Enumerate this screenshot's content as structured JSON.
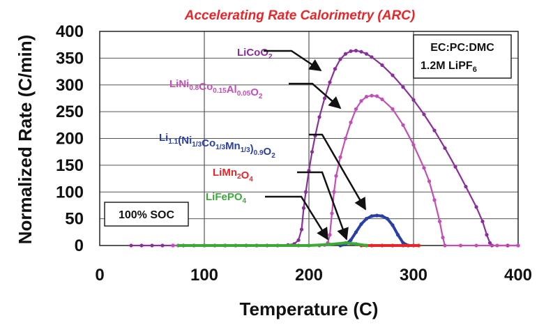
{
  "chart_data": {
    "type": "line",
    "title": "Accelerating Rate Calorimetry (ARC)",
    "xlabel": "Temperature (C)",
    "ylabel": "Normalized Rate (C/min)",
    "xlim": [
      0,
      400
    ],
    "ylim": [
      0,
      400
    ],
    "x_ticks": [
      "0",
      "100",
      "200",
      "300",
      "400"
    ],
    "y_ticks": [
      "0",
      "50",
      "100",
      "150",
      "200",
      "250",
      "300",
      "350",
      "400"
    ],
    "grid": "vertical and horizontal",
    "legend_placement": "top-right",
    "annotation_box": {
      "line1": "EC:PC:DMC",
      "line2_main": "1.2M LiPF",
      "line2_sub": "6"
    },
    "soc_box": "100% SOC",
    "colors": {
      "title": "#e8262a",
      "purple": "#8a2e9b",
      "magenta": "#c44db8",
      "blue": "#2a3ea8",
      "red": "#e8262a",
      "green": "#3aaa35",
      "grid": "#555555"
    },
    "series": [
      {
        "name": "LiCoO2",
        "label_parts": [
          {
            "t": "LiCoO"
          },
          {
            "t": "2",
            "sub": true
          }
        ],
        "color": "#8a2e9b",
        "points": [
          [
            30,
            0
          ],
          [
            40,
            0
          ],
          [
            50,
            0
          ],
          [
            60,
            0
          ],
          [
            70,
            0
          ],
          [
            80,
            0
          ],
          [
            90,
            0
          ],
          [
            100,
            0
          ],
          [
            110,
            0
          ],
          [
            120,
            0
          ],
          [
            130,
            0
          ],
          [
            140,
            0
          ],
          [
            150,
            0
          ],
          [
            160,
            0
          ],
          [
            170,
            0
          ],
          [
            180,
            1
          ],
          [
            186,
            3
          ],
          [
            190,
            10
          ],
          [
            193,
            30
          ],
          [
            195,
            70
          ],
          [
            197,
            100
          ],
          [
            200,
            140
          ],
          [
            203,
            175
          ],
          [
            206,
            205
          ],
          [
            210,
            240
          ],
          [
            215,
            275
          ],
          [
            220,
            305
          ],
          [
            225,
            330
          ],
          [
            230,
            348
          ],
          [
            235,
            358
          ],
          [
            240,
            363
          ],
          [
            245,
            364
          ],
          [
            250,
            362
          ],
          [
            255,
            358
          ],
          [
            260,
            352
          ],
          [
            270,
            337
          ],
          [
            280,
            318
          ],
          [
            290,
            296
          ],
          [
            300,
            272
          ],
          [
            310,
            245
          ],
          [
            320,
            215
          ],
          [
            330,
            182
          ],
          [
            340,
            147
          ],
          [
            350,
            110
          ],
          [
            360,
            72
          ],
          [
            366,
            45
          ],
          [
            370,
            20
          ],
          [
            373,
            5
          ],
          [
            375,
            0
          ],
          [
            390,
            0
          ],
          [
            400,
            0
          ]
        ]
      },
      {
        "name": "LiNi0.8Co0.15Al0.05O2",
        "label_parts": [
          {
            "t": "LiNi"
          },
          {
            "t": "0.8",
            "sub": true
          },
          {
            "t": "Co"
          },
          {
            "t": "0.15",
            "sub": true
          },
          {
            "t": "Al"
          },
          {
            "t": "0.05",
            "sub": true
          },
          {
            "t": "O"
          },
          {
            "t": "2",
            "sub": true
          }
        ],
        "color": "#c44db8",
        "points": [
          [
            70,
            0
          ],
          [
            90,
            0
          ],
          [
            110,
            0
          ],
          [
            130,
            0
          ],
          [
            150,
            0
          ],
          [
            170,
            0
          ],
          [
            190,
            0
          ],
          [
            200,
            0
          ],
          [
            210,
            0
          ],
          [
            215,
            1
          ],
          [
            218,
            5
          ],
          [
            220,
            20
          ],
          [
            222,
            60
          ],
          [
            224,
            100
          ],
          [
            226,
            130
          ],
          [
            230,
            165
          ],
          [
            235,
            200
          ],
          [
            240,
            230
          ],
          [
            245,
            255
          ],
          [
            250,
            270
          ],
          [
            255,
            278
          ],
          [
            260,
            280
          ],
          [
            265,
            279
          ],
          [
            270,
            273
          ],
          [
            280,
            255
          ],
          [
            290,
            225
          ],
          [
            300,
            188
          ],
          [
            310,
            145
          ],
          [
            315,
            120
          ],
          [
            320,
            85
          ],
          [
            325,
            45
          ],
          [
            328,
            15
          ],
          [
            330,
            0
          ],
          [
            345,
            0
          ],
          [
            360,
            0
          ],
          [
            380,
            0
          ],
          [
            400,
            0
          ]
        ]
      },
      {
        "name": "Li1.1(Ni1/3Co1/3Mn1/3)0.9O2",
        "label_parts": [
          {
            "t": "Li"
          },
          {
            "t": "1.1",
            "sub": true
          },
          {
            "t": "(Ni"
          },
          {
            "t": "1/3",
            "sub": true
          },
          {
            "t": "Co"
          },
          {
            "t": "1/3",
            "sub": true
          },
          {
            "t": "Mn"
          },
          {
            "t": "1/3",
            "sub": true
          },
          {
            "t": ")"
          },
          {
            "t": "0.9",
            "sub": true
          },
          {
            "t": "O"
          },
          {
            "t": "2",
            "sub": true
          }
        ],
        "color": "#2a3ea8",
        "points": [
          [
            230,
            0
          ],
          [
            235,
            2
          ],
          [
            240,
            10
          ],
          [
            245,
            25
          ],
          [
            250,
            40
          ],
          [
            255,
            50
          ],
          [
            260,
            55
          ],
          [
            265,
            56
          ],
          [
            270,
            55
          ],
          [
            275,
            50
          ],
          [
            280,
            38
          ],
          [
            285,
            20
          ],
          [
            290,
            5
          ],
          [
            295,
            0
          ],
          [
            300,
            0
          ]
        ]
      },
      {
        "name": "LiMn2O4",
        "label_parts": [
          {
            "t": "LiMn"
          },
          {
            "t": "2",
            "sub": true
          },
          {
            "t": "O"
          },
          {
            "t": "4",
            "sub": true
          }
        ],
        "color": "#e8262a",
        "points": [
          [
            250,
            0
          ],
          [
            260,
            0
          ],
          [
            270,
            0
          ],
          [
            280,
            0
          ],
          [
            290,
            0
          ],
          [
            300,
            0
          ],
          [
            305,
            0
          ]
        ]
      },
      {
        "name": "LiFePO4",
        "label_parts": [
          {
            "t": "LiFePO"
          },
          {
            "t": "4",
            "sub": true
          }
        ],
        "color": "#3aaa35",
        "points": [
          [
            75,
            0
          ],
          [
            100,
            0
          ],
          [
            150,
            0
          ],
          [
            200,
            0
          ],
          [
            220,
            2
          ],
          [
            235,
            5
          ],
          [
            245,
            3
          ],
          [
            255,
            0
          ]
        ]
      }
    ]
  }
}
